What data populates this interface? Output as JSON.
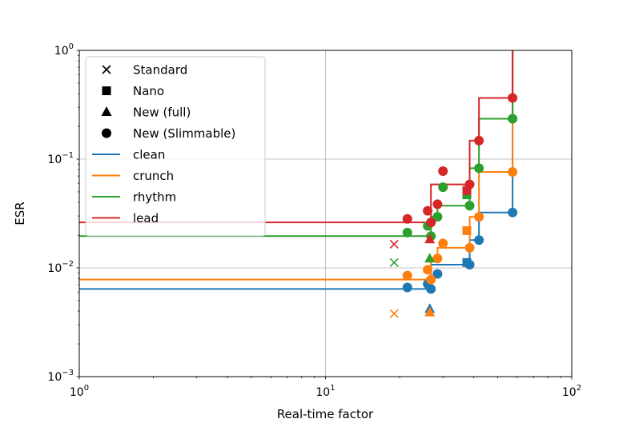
{
  "chart_data": {
    "type": "scatter",
    "title": "",
    "xlabel": "Real-time factor",
    "ylabel": "ESR",
    "xscale": "log",
    "yscale": "log",
    "xlim": [
      1,
      100
    ],
    "ylim": [
      0.001,
      1
    ],
    "grid": true,
    "legend_position": "upper-left",
    "x_ticks": [
      {
        "value": 1,
        "base": "10",
        "exp": "0"
      },
      {
        "value": 10,
        "base": "10",
        "exp": "1"
      },
      {
        "value": 100,
        "base": "10",
        "exp": "2"
      }
    ],
    "y_ticks": [
      {
        "value": 0.001,
        "base": "10",
        "exp": "−3"
      },
      {
        "value": 0.01,
        "base": "10",
        "exp": "−2"
      },
      {
        "value": 0.1,
        "base": "10",
        "exp": "−1"
      },
      {
        "value": 1,
        "base": "10",
        "exp": "0"
      }
    ],
    "marker_legend": [
      {
        "label": "Standard",
        "marker": "x"
      },
      {
        "label": "Nano",
        "marker": "square"
      },
      {
        "label": "New (full)",
        "marker": "triangle"
      },
      {
        "label": "New (Slimmable)",
        "marker": "circle"
      }
    ],
    "series": [
      {
        "name": "clean",
        "color": "#1f77b4",
        "standard": [],
        "nano": [
          [
            37.5,
            0.0112
          ]
        ],
        "full": [
          [
            26.5,
            0.0042
          ]
        ],
        "slimmable": [
          [
            21.5,
            0.0066
          ],
          [
            26,
            0.0071
          ],
          [
            26.8,
            0.0064
          ],
          [
            28.5,
            0.0088
          ],
          [
            38.5,
            0.0107
          ],
          [
            42,
            0.018
          ],
          [
            57.5,
            0.0323
          ]
        ],
        "frontier": [
          [
            1,
            0.0064
          ],
          [
            26.8,
            0.0064
          ],
          [
            26.8,
            0.0107
          ],
          [
            38.5,
            0.0107
          ],
          [
            38.5,
            0.018
          ],
          [
            42,
            0.018
          ],
          [
            42,
            0.0323
          ],
          [
            57.5,
            0.0323
          ],
          [
            57.5,
            1.5
          ]
        ]
      },
      {
        "name": "crunch",
        "color": "#ff7f0e",
        "standard": [
          [
            19,
            0.0038
          ]
        ],
        "nano": [
          [
            37.5,
            0.022
          ]
        ],
        "full": [
          [
            26.5,
            0.0039
          ]
        ],
        "slimmable": [
          [
            21.5,
            0.0085
          ],
          [
            26,
            0.0096
          ],
          [
            26.8,
            0.0078
          ],
          [
            28.5,
            0.0122
          ],
          [
            30,
            0.0168
          ],
          [
            38.5,
            0.0153
          ],
          [
            42,
            0.0294
          ],
          [
            57.5,
            0.0762
          ]
        ],
        "frontier": [
          [
            1,
            0.0078
          ],
          [
            26.8,
            0.0078
          ],
          [
            26.8,
            0.0122
          ],
          [
            28.5,
            0.0122
          ],
          [
            28.5,
            0.0153
          ],
          [
            38.5,
            0.0153
          ],
          [
            38.5,
            0.0294
          ],
          [
            42,
            0.0294
          ],
          [
            42,
            0.0762
          ],
          [
            57.5,
            0.0762
          ],
          [
            57.5,
            1.5
          ]
        ]
      },
      {
        "name": "rhythm",
        "color": "#2ca02c",
        "standard": [
          [
            19,
            0.0112
          ]
        ],
        "nano": [
          [
            37.5,
            0.047
          ]
        ],
        "full": [
          [
            26.5,
            0.0122
          ]
        ],
        "slimmable": [
          [
            21.5,
            0.0211
          ],
          [
            26,
            0.0243
          ],
          [
            26.8,
            0.0196
          ],
          [
            28.5,
            0.0295
          ],
          [
            30,
            0.0552
          ],
          [
            38.5,
            0.0373
          ],
          [
            42,
            0.0825
          ],
          [
            57.5,
            0.235
          ]
        ],
        "frontier": [
          [
            1,
            0.0196
          ],
          [
            26.8,
            0.0196
          ],
          [
            26.8,
            0.0295
          ],
          [
            28.5,
            0.0295
          ],
          [
            28.5,
            0.0373
          ],
          [
            38.5,
            0.0373
          ],
          [
            38.5,
            0.0825
          ],
          [
            42,
            0.0825
          ],
          [
            42,
            0.235
          ],
          [
            57.5,
            0.235
          ],
          [
            57.5,
            1.5
          ]
        ]
      },
      {
        "name": "lead",
        "color": "#d62728",
        "standard": [
          [
            19,
            0.0165
          ]
        ],
        "nano": [
          [
            37.5,
            0.0515
          ]
        ],
        "full": [
          [
            26.5,
            0.0183
          ]
        ],
        "slimmable": [
          [
            21.5,
            0.0282
          ],
          [
            26,
            0.0335
          ],
          [
            26.8,
            0.0262
          ],
          [
            28.5,
            0.0385
          ],
          [
            30,
            0.0775
          ],
          [
            38.5,
            0.0585
          ],
          [
            42,
            0.148
          ],
          [
            57.5,
            0.365
          ]
        ],
        "frontier": [
          [
            1,
            0.0262
          ],
          [
            26.8,
            0.0262
          ],
          [
            26.8,
            0.0585
          ],
          [
            38.5,
            0.0585
          ],
          [
            38.5,
            0.148
          ],
          [
            42,
            0.148
          ],
          [
            42,
            0.365
          ],
          [
            57.5,
            0.365
          ],
          [
            57.5,
            1.5
          ]
        ]
      }
    ]
  }
}
